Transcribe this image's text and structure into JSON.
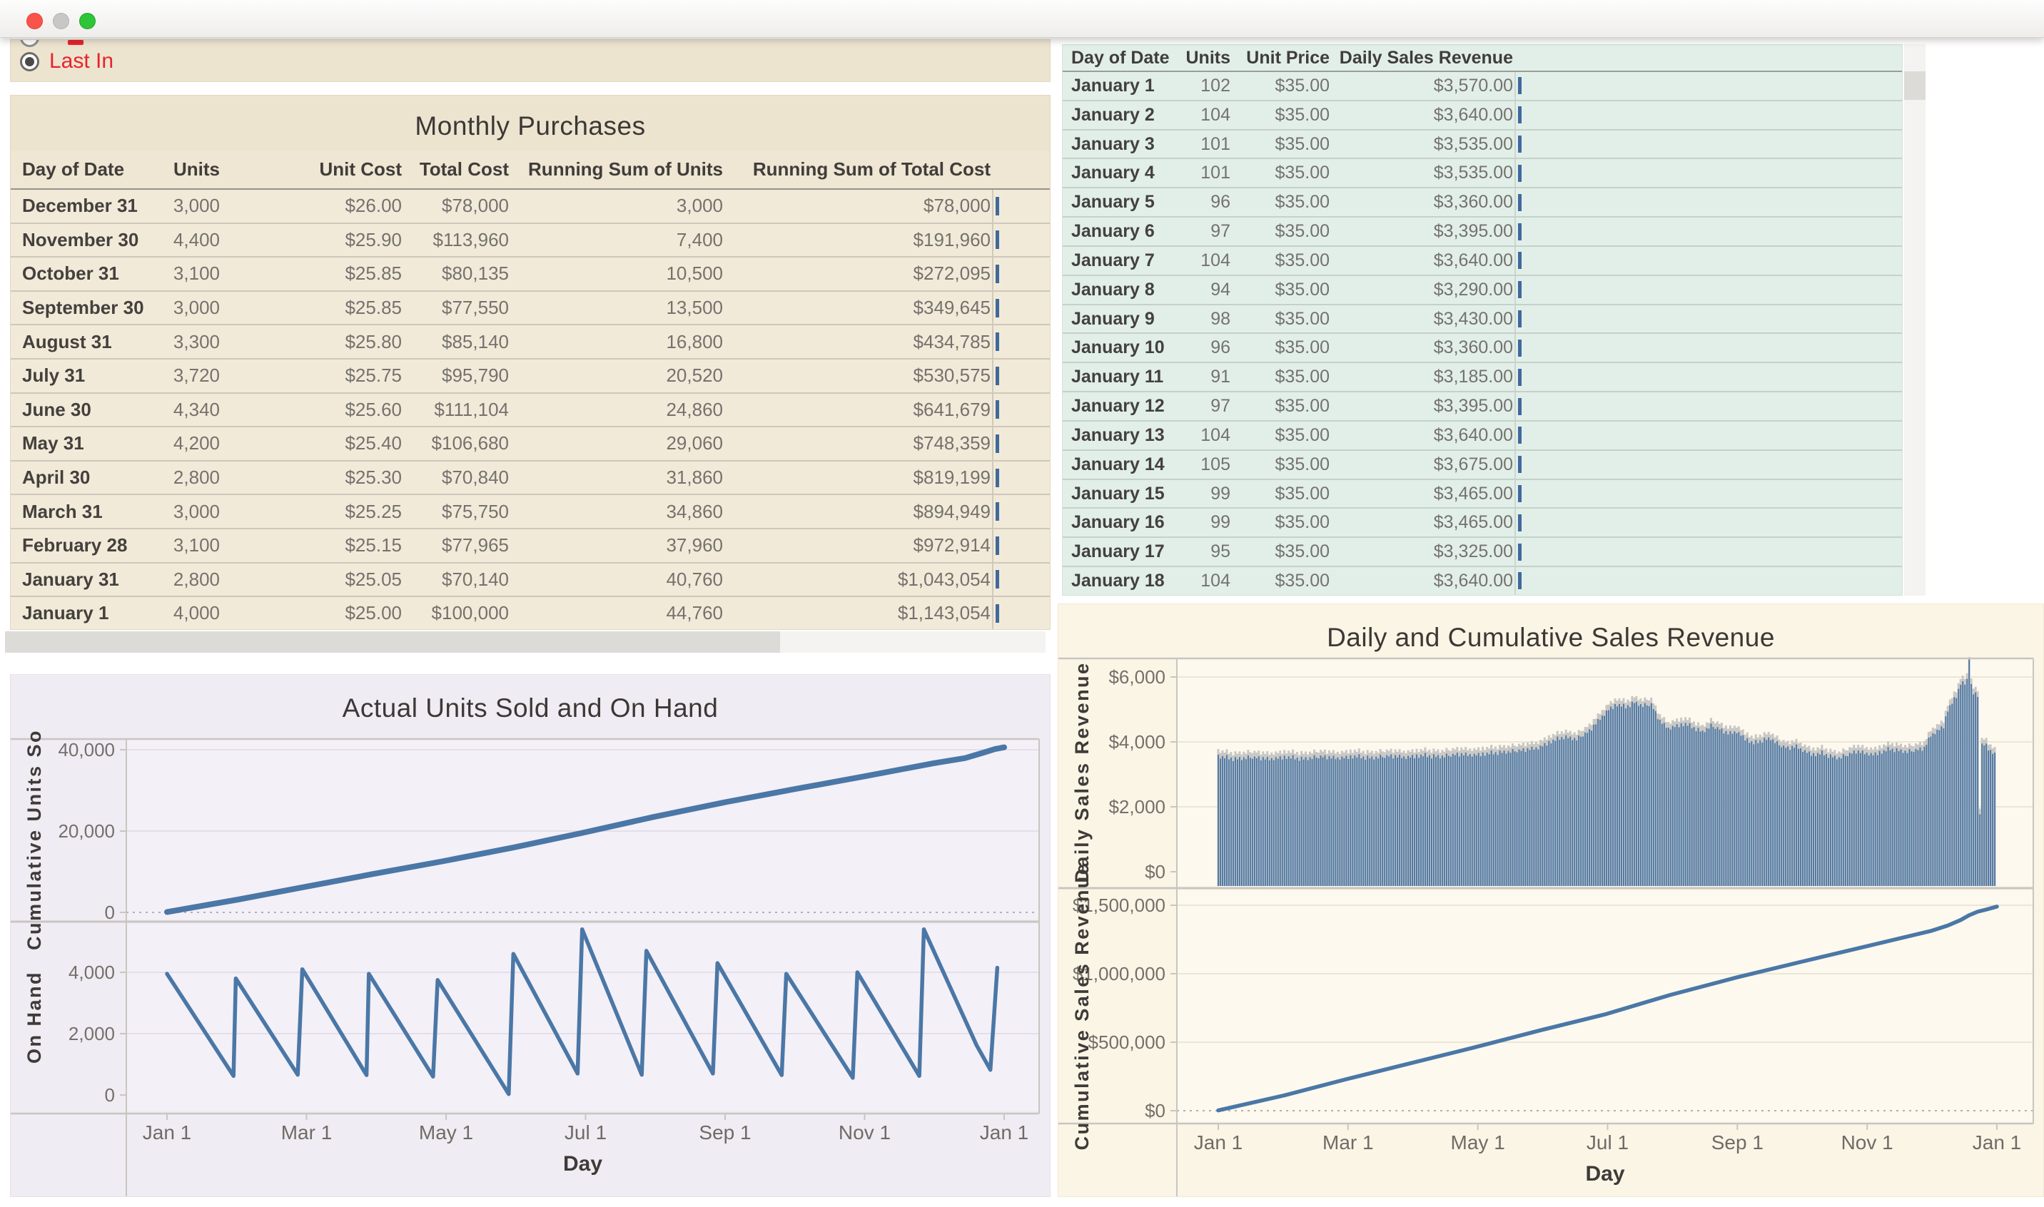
{
  "window": {
    "controls": [
      "close",
      "minimize",
      "zoom"
    ]
  },
  "filter": {
    "selected_label": "Last In",
    "label_color": "#e8232a"
  },
  "colors": {
    "accent_blue": "#4a77a6",
    "bar_shadow_gray": "#c9c7c4",
    "selected_red": "#e8232a"
  },
  "purchases_table": {
    "title": "Monthly Purchases",
    "columns": [
      "Day of Date",
      "Units",
      "Unit Cost",
      "Total Cost",
      "Running Sum of Units",
      "Running Sum of Total Cost"
    ],
    "rows": [
      [
        "December 31",
        "3,000",
        "$26.00",
        "$78,000",
        "3,000",
        "$78,000"
      ],
      [
        "November 30",
        "4,400",
        "$25.90",
        "$113,960",
        "7,400",
        "$191,960"
      ],
      [
        "October 31",
        "3,100",
        "$25.85",
        "$80,135",
        "10,500",
        "$272,095"
      ],
      [
        "September 30",
        "3,000",
        "$25.85",
        "$77,550",
        "13,500",
        "$349,645"
      ],
      [
        "August 31",
        "3,300",
        "$25.80",
        "$85,140",
        "16,800",
        "$434,785"
      ],
      [
        "July 31",
        "3,720",
        "$25.75",
        "$95,790",
        "20,520",
        "$530,575"
      ],
      [
        "June 30",
        "4,340",
        "$25.60",
        "$111,104",
        "24,860",
        "$641,679"
      ],
      [
        "May 31",
        "4,200",
        "$25.40",
        "$106,680",
        "29,060",
        "$748,359"
      ],
      [
        "April 30",
        "2,800",
        "$25.30",
        "$70,840",
        "31,860",
        "$819,199"
      ],
      [
        "March 31",
        "3,000",
        "$25.25",
        "$75,750",
        "34,860",
        "$894,949"
      ],
      [
        "February 28",
        "3,100",
        "$25.15",
        "$77,965",
        "37,960",
        "$972,914"
      ],
      [
        "January 31",
        "2,800",
        "$25.05",
        "$70,140",
        "40,760",
        "$1,043,054"
      ],
      [
        "January 1",
        "4,000",
        "$25.00",
        "$100,000",
        "44,760",
        "$1,143,054"
      ]
    ]
  },
  "daily_sales_table": {
    "columns": [
      "Day of Date",
      "Units",
      "Unit Price",
      "Daily Sales Revenue"
    ],
    "rows": [
      [
        "January 1",
        "102",
        "$35.00",
        "$3,570.00"
      ],
      [
        "January 2",
        "104",
        "$35.00",
        "$3,640.00"
      ],
      [
        "January 3",
        "101",
        "$35.00",
        "$3,535.00"
      ],
      [
        "January 4",
        "101",
        "$35.00",
        "$3,535.00"
      ],
      [
        "January 5",
        "96",
        "$35.00",
        "$3,360.00"
      ],
      [
        "January 6",
        "97",
        "$35.00",
        "$3,395.00"
      ],
      [
        "January 7",
        "104",
        "$35.00",
        "$3,640.00"
      ],
      [
        "January 8",
        "94",
        "$35.00",
        "$3,290.00"
      ],
      [
        "January 9",
        "98",
        "$35.00",
        "$3,430.00"
      ],
      [
        "January 10",
        "96",
        "$35.00",
        "$3,360.00"
      ],
      [
        "January 11",
        "91",
        "$35.00",
        "$3,185.00"
      ],
      [
        "January 12",
        "97",
        "$35.00",
        "$3,395.00"
      ],
      [
        "January 13",
        "104",
        "$35.00",
        "$3,640.00"
      ],
      [
        "January 14",
        "105",
        "$35.00",
        "$3,675.00"
      ],
      [
        "January 15",
        "99",
        "$35.00",
        "$3,465.00"
      ],
      [
        "January 16",
        "99",
        "$35.00",
        "$3,465.00"
      ],
      [
        "January 17",
        "95",
        "$35.00",
        "$3,325.00"
      ],
      [
        "January 18",
        "104",
        "$35.00",
        "$3,640.00"
      ]
    ]
  },
  "chart_data": [
    {
      "type": "line",
      "title": "Actual Units Sold and On Hand",
      "xlabel": "Day",
      "x_ticks": [
        "Jan 1",
        "Mar 1",
        "May 1",
        "Jul 1",
        "Sep 1",
        "Nov 1",
        "Jan 1"
      ],
      "x_domain_days": [
        0,
        365
      ],
      "grid": true,
      "legend": "none",
      "subplots": [
        {
          "ylabel": "Cumulative Units Sold",
          "yticks": [
            0,
            20000,
            40000
          ],
          "ytick_labels": [
            "0",
            "20,000",
            "40,000"
          ],
          "ylim": [
            -1700,
            44500
          ],
          "zero_line": "dotted",
          "series": [
            {
              "name": "Cumulative Units Sold",
              "mark": "line",
              "points": [
                [
                  0,
                  80
                ],
                [
                  31,
                  3150
                ],
                [
                  59,
                  6150
                ],
                [
                  90,
                  9450
                ],
                [
                  120,
                  12550
                ],
                [
                  151,
                  15950
                ],
                [
                  181,
                  19550
                ],
                [
                  212,
                  23450
                ],
                [
                  243,
                  27050
                ],
                [
                  273,
                  30250
                ],
                [
                  304,
                  33450
                ],
                [
                  334,
                  36650
                ],
                [
                  348,
                  37950
                ],
                [
                  356,
                  39300
                ],
                [
                  361,
                  40150
                ],
                [
                  365,
                  40600
                ]
              ]
            }
          ]
        },
        {
          "ylabel": "On Hand",
          "yticks": [
            0,
            2000,
            4000
          ],
          "ytick_labels": [
            "0",
            "2,000",
            "4,000"
          ],
          "ylim": [
            -500,
            5600
          ],
          "zero_line": "none",
          "series": [
            {
              "name": "On Hand",
              "mark": "line",
              "points": [
                [
                  0,
                  3950
                ],
                [
                  29,
                  620
                ],
                [
                  30,
                  3800
                ],
                [
                  57,
                  660
                ],
                [
                  59,
                  4100
                ],
                [
                  87,
                  650
                ],
                [
                  88,
                  3950
                ],
                [
                  116,
                  600
                ],
                [
                  118,
                  3750
                ],
                [
                  149,
                  30
                ],
                [
                  151,
                  4600
                ],
                [
                  179,
                  700
                ],
                [
                  181,
                  5400
                ],
                [
                  207,
                  660
                ],
                [
                  209,
                  4700
                ],
                [
                  238,
                  700
                ],
                [
                  240,
                  4300
                ],
                [
                  268,
                  650
                ],
                [
                  270,
                  3950
                ],
                [
                  299,
                  560
                ],
                [
                  301,
                  4000
                ],
                [
                  328,
                  620
                ],
                [
                  330,
                  5400
                ],
                [
                  353,
                  1620
                ],
                [
                  359,
                  820
                ],
                [
                  362,
                  4150
                ]
              ]
            }
          ]
        }
      ]
    },
    {
      "type": "bar+line",
      "title": "Daily and Cumulative Sales Revenue",
      "xlabel": "Day",
      "x_ticks": [
        "Jan 1",
        "Mar 1",
        "May 1",
        "Jul 1",
        "Sep 1",
        "Nov 1",
        "Jan 1"
      ],
      "x_domain_days": [
        0,
        365
      ],
      "grid": true,
      "legend": "none",
      "subplots": [
        {
          "ylabel": "Daily Sales Revenue",
          "yticks": [
            0,
            2000,
            4000,
            6000
          ],
          "ytick_labels": [
            "$0",
            "$2,000",
            "$4,000",
            "$6,000"
          ],
          "ylim": [
            0,
            6600
          ],
          "zero_line": "none",
          "series": [
            {
              "name": "Daily Sales Revenue",
              "mark": "bar",
              "anchors": [
                [
                  0,
                  3560
                ],
                [
                  8,
                  3480
                ],
                [
                  16,
                  3530
                ],
                [
                  24,
                  3470
                ],
                [
                  32,
                  3540
                ],
                [
                  40,
                  3480
                ],
                [
                  48,
                  3550
                ],
                [
                  56,
                  3500
                ],
                [
                  64,
                  3560
                ],
                [
                  72,
                  3510
                ],
                [
                  80,
                  3570
                ],
                [
                  88,
                  3530
                ],
                [
                  96,
                  3590
                ],
                [
                  104,
                  3550
                ],
                [
                  112,
                  3620
                ],
                [
                  120,
                  3600
                ],
                [
                  128,
                  3660
                ],
                [
                  136,
                  3700
                ],
                [
                  144,
                  3760
                ],
                [
                  150,
                  3820
                ],
                [
                  156,
                  4020
                ],
                [
                  162,
                  4160
                ],
                [
                  168,
                  4090
                ],
                [
                  174,
                  4340
                ],
                [
                  179,
                  4720
                ],
                [
                  183,
                  5000
                ],
                [
                  187,
                  5160
                ],
                [
                  191,
                  5080
                ],
                [
                  195,
                  5220
                ],
                [
                  199,
                  5120
                ],
                [
                  203,
                  5160
                ],
                [
                  207,
                  4640
                ],
                [
                  211,
                  4420
                ],
                [
                  215,
                  4500
                ],
                [
                  219,
                  4560
                ],
                [
                  223,
                  4440
                ],
                [
                  227,
                  4310
                ],
                [
                  231,
                  4500
                ],
                [
                  235,
                  4400
                ],
                [
                  239,
                  4260
                ],
                [
                  243,
                  4320
                ],
                [
                  247,
                  4110
                ],
                [
                  251,
                  3960
                ],
                [
                  255,
                  4060
                ],
                [
                  259,
                  4110
                ],
                [
                  263,
                  3910
                ],
                [
                  267,
                  3810
                ],
                [
                  271,
                  3860
                ],
                [
                  275,
                  3710
                ],
                [
                  279,
                  3610
                ],
                [
                  283,
                  3660
                ],
                [
                  287,
                  3560
                ],
                [
                  291,
                  3510
                ],
                [
                  295,
                  3610
                ],
                [
                  299,
                  3710
                ],
                [
                  303,
                  3660
                ],
                [
                  307,
                  3610
                ],
                [
                  311,
                  3700
                ],
                [
                  315,
                  3790
                ],
                [
                  319,
                  3740
                ],
                [
                  323,
                  3700
                ],
                [
                  327,
                  3750
                ],
                [
                  331,
                  3810
                ],
                [
                  334,
                  4200
                ],
                [
                  337,
                  4340
                ],
                [
                  340,
                  4480
                ],
                [
                  342,
                  5000
                ],
                [
                  344,
                  5210
                ],
                [
                  346,
                  5400
                ],
                [
                  348,
                  5840
                ],
                [
                  350,
                  5790
                ],
                [
                  351,
                  5900
                ],
                [
                  352,
                  6600
                ],
                [
                  353,
                  5760
                ],
                [
                  354,
                  5510
                ],
                [
                  355,
                  5460
                ],
                [
                  356,
                  5400
                ],
                [
                  357,
                  1820
                ],
                [
                  358,
                  3920
                ],
                [
                  360,
                  3900
                ],
                [
                  362,
                  3710
                ],
                [
                  364,
                  3610
                ]
              ],
              "noise": [
                45,
                -65,
                25,
                -35,
                75,
                -50,
                15,
                -80,
                55,
                -25,
                40,
                -60,
                20,
                -45,
                65,
                -15,
                -50,
                30,
                -20,
                50,
                -70,
                40,
                -30,
                60,
                -40,
                20,
                -55,
                35,
                -25,
                45,
                -65
              ]
            }
          ]
        },
        {
          "ylabel": "Cumulative Sales Revenue",
          "yticks": [
            0,
            500000,
            1000000,
            1500000
          ],
          "ytick_labels": [
            "$0",
            "$500,000",
            "$1,000,000",
            "$1,500,000"
          ],
          "ylim": [
            -80000,
            1640000
          ],
          "zero_line": "dotted",
          "series": [
            {
              "name": "Cumulative Sales Revenue",
              "mark": "line",
              "points": [
                [
                  0,
                  2000
                ],
                [
                  31,
                  112000
                ],
                [
                  59,
                  226000
                ],
                [
                  90,
                  346000
                ],
                [
                  120,
                  462000
                ],
                [
                  151,
                  587000
                ],
                [
                  181,
                  702000
                ],
                [
                  212,
                  846000
                ],
                [
                  243,
                  973000
                ],
                [
                  273,
                  1086000
                ],
                [
                  304,
                  1201000
                ],
                [
                  334,
                  1312000
                ],
                [
                  342,
                  1352000
                ],
                [
                  348,
                  1392000
                ],
                [
                  352,
                  1427000
                ],
                [
                  356,
                  1453000
                ],
                [
                  360,
                  1469000
                ],
                [
                  365,
                  1490000
                ]
              ]
            }
          ]
        }
      ]
    }
  ]
}
